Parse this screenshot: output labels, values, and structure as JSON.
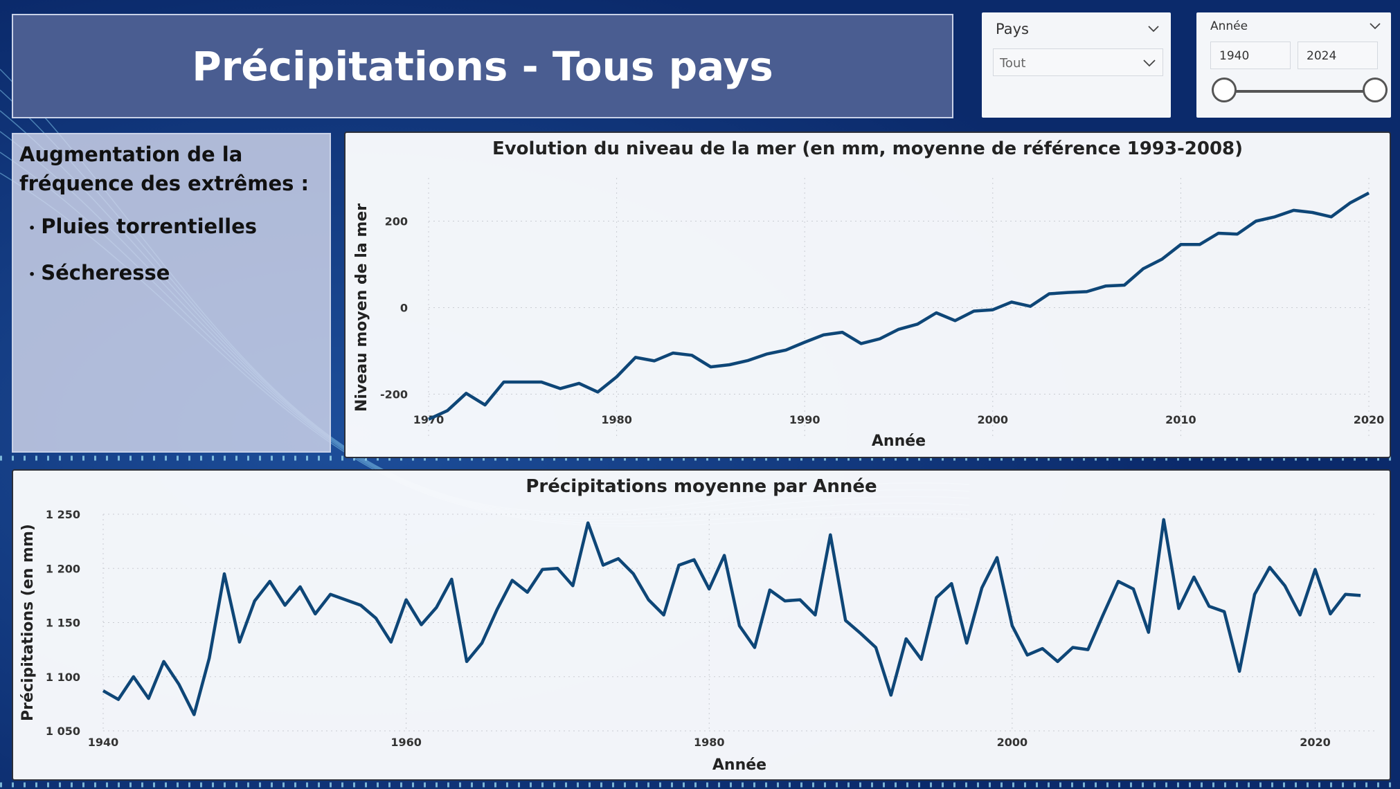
{
  "header": {
    "title": "Précipitations - Tous pays"
  },
  "slicers": {
    "pays": {
      "label": "Pays",
      "value": "Tout"
    },
    "annee": {
      "label": "Année",
      "from": "1940",
      "to": "2024"
    }
  },
  "info": {
    "heading": "Augmentation de la fréquence des extrêmes :",
    "bullets": [
      "Pluies torrentielles",
      "Sécheresse"
    ]
  },
  "colors": {
    "line": "#0e4677",
    "background": "#0b2a6b",
    "accent": "#4a5d91"
  },
  "chart_data": [
    {
      "id": "sea-level",
      "type": "line",
      "title": "Evolution du niveau de la mer (en mm, moyenne de référence 1993-2008)",
      "xlabel": "Année",
      "ylabel": "Niveau moyen de la mer",
      "xlim": [
        1970,
        2020
      ],
      "ylim": [
        -300,
        300
      ],
      "xticks": [
        1970,
        1980,
        1990,
        2000,
        2010,
        2020
      ],
      "yticks": [
        -200,
        0,
        200
      ],
      "x": [
        1970,
        1971,
        1972,
        1973,
        1974,
        1975,
        1976,
        1977,
        1978,
        1979,
        1980,
        1981,
        1982,
        1983,
        1984,
        1985,
        1986,
        1987,
        1988,
        1989,
        1990,
        1991,
        1992,
        1993,
        1994,
        1995,
        1996,
        1997,
        1998,
        1999,
        2000,
        2001,
        2002,
        2003,
        2004,
        2005,
        2006,
        2007,
        2008,
        2009,
        2010,
        2011,
        2012,
        2013,
        2014,
        2015,
        2016,
        2017,
        2018,
        2019,
        2020
      ],
      "values": [
        -258,
        -238,
        -198,
        -225,
        -172,
        -172,
        -172,
        -187,
        -175,
        -195,
        -160,
        -115,
        -123,
        -105,
        -110,
        -137,
        -132,
        -122,
        -107,
        -98,
        -80,
        -63,
        -57,
        -83,
        -72,
        -50,
        -38,
        -12,
        -30,
        -8,
        -5,
        13,
        3,
        32,
        35,
        37,
        50,
        52,
        90,
        112,
        146,
        146,
        172,
        170,
        200,
        210,
        225,
        220,
        210,
        242,
        265
      ]
    },
    {
      "id": "precipitation",
      "type": "line",
      "title": "Précipitations moyenne par Année",
      "xlabel": "Année",
      "ylabel": "Précipitations (en mm)",
      "xlim": [
        1940,
        2024
      ],
      "ylim": [
        1050,
        1250
      ],
      "xticks": [
        1940,
        1960,
        1980,
        2000,
        2020
      ],
      "yticks": [
        1050,
        1100,
        1150,
        1200,
        1250
      ],
      "ytick_labels": [
        "1 050",
        "1 100",
        "1 150",
        "1 200",
        "1 250"
      ],
      "x": [
        1940,
        1941,
        1942,
        1943,
        1944,
        1945,
        1946,
        1947,
        1948,
        1949,
        1950,
        1951,
        1952,
        1953,
        1954,
        1955,
        1956,
        1957,
        1958,
        1959,
        1960,
        1961,
        1962,
        1963,
        1964,
        1965,
        1966,
        1967,
        1968,
        1969,
        1970,
        1971,
        1972,
        1973,
        1974,
        1975,
        1976,
        1977,
        1978,
        1979,
        1980,
        1981,
        1982,
        1983,
        1984,
        1985,
        1986,
        1987,
        1988,
        1989,
        1990,
        1991,
        1992,
        1993,
        1994,
        1995,
        1996,
        1997,
        1998,
        1999,
        2000,
        2001,
        2002,
        2003,
        2004,
        2005,
        2006,
        2007,
        2008,
        2009,
        2010,
        2011,
        2012,
        2013,
        2014,
        2015,
        2016,
        2017,
        2018,
        2019,
        2020,
        2021,
        2022,
        2023
      ],
      "values": [
        1087,
        1079,
        1100,
        1080,
        1114,
        1093,
        1065,
        1117,
        1195,
        1132,
        1170,
        1188,
        1166,
        1183,
        1158,
        1176,
        1171,
        1166,
        1154,
        1132,
        1171,
        1148,
        1164,
        1190,
        1114,
        1131,
        1162,
        1189,
        1178,
        1199,
        1200,
        1184,
        1242,
        1203,
        1209,
        1195,
        1171,
        1157,
        1203,
        1208,
        1181,
        1212,
        1147,
        1127,
        1180,
        1170,
        1171,
        1157,
        1231,
        1152,
        1140,
        1127,
        1083,
        1135,
        1116,
        1173,
        1186,
        1131,
        1182,
        1210,
        1147,
        1120,
        1126,
        1114,
        1127,
        1125,
        1157,
        1188,
        1181,
        1141,
        1245,
        1163,
        1192,
        1165,
        1160,
        1105,
        1176,
        1201,
        1184,
        1157,
        1199,
        1158,
        1176,
        1175
      ]
    }
  ]
}
